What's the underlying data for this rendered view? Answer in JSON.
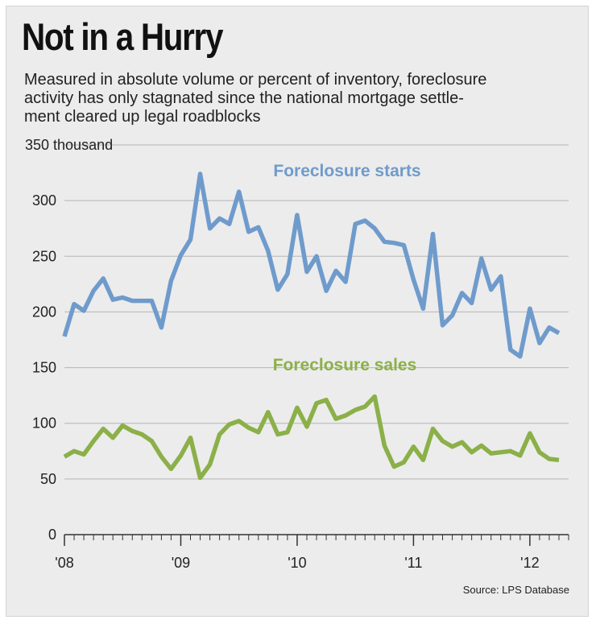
{
  "title": "Not in a Hurry",
  "subtitle_lines": [
    "Measured in absolute volume or percent of inventory, foreclosure",
    "activity has only stagnated since the national mortgage settle-",
    "ment cleared up legal roadblocks"
  ],
  "source": "Source: LPS Database",
  "colors": {
    "starts": "#6f9bcc",
    "sales": "#8bb049",
    "grid": "#b5b5b5",
    "axis": "#333333"
  },
  "chart_data": {
    "type": "line",
    "title": "Not in a Hurry",
    "ylabel": "350 thousand",
    "ylim": [
      0,
      350
    ],
    "yticks": [
      0,
      50,
      100,
      150,
      200,
      250,
      300,
      350
    ],
    "ytick_labels": [
      "0",
      "50",
      "100",
      "150",
      "200",
      "250",
      "300",
      "350 thousand"
    ],
    "xlim": [
      2008.0,
      2012.333
    ],
    "xticks": [
      2008,
      2009,
      2010,
      2011,
      2012
    ],
    "xtick_labels": [
      "'08",
      "'09",
      "'10",
      "'11",
      "'12"
    ],
    "x_minor_step": 0.08333,
    "x_start": 2008.0,
    "x_step": 0.08333,
    "series": [
      {
        "name": "Foreclosure starts",
        "color": "#6f9bcc",
        "values": [
          178,
          207,
          201,
          219,
          230,
          211,
          213,
          210,
          210,
          210,
          186,
          228,
          251,
          265,
          324,
          275,
          284,
          279,
          308,
          272,
          276,
          255,
          220,
          234,
          287,
          236,
          250,
          219,
          237,
          227,
          279,
          282,
          275,
          263,
          262,
          260,
          229,
          203,
          270,
          188,
          197,
          217,
          208,
          248,
          220,
          232,
          166,
          160,
          203,
          172,
          186,
          181
        ]
      },
      {
        "name": "Foreclosure sales",
        "color": "#8bb049",
        "values": [
          70,
          75,
          72,
          84,
          95,
          87,
          98,
          93,
          90,
          84,
          70,
          59,
          71,
          87,
          51,
          63,
          90,
          99,
          102,
          96,
          92,
          110,
          90,
          92,
          114,
          97,
          118,
          121,
          104,
          107,
          112,
          115,
          124,
          80,
          61,
          65,
          79,
          67,
          95,
          84,
          79,
          83,
          74,
          80,
          73,
          74,
          75,
          71,
          91,
          74,
          68,
          67
        ]
      }
    ],
    "annotations": [
      {
        "text": "Foreclosure starts",
        "series": 0
      },
      {
        "text": "Foreclosure sales",
        "series": 1
      }
    ]
  }
}
